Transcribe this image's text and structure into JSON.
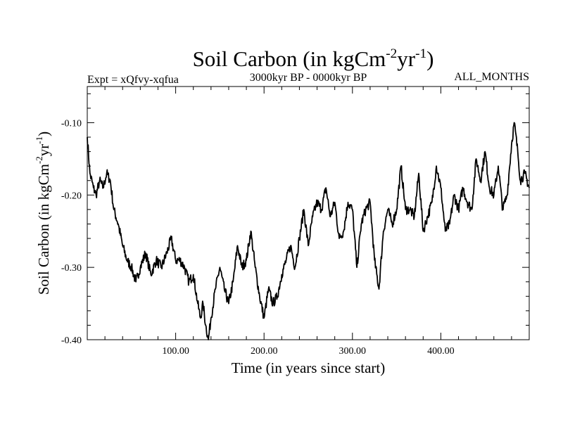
{
  "chart_data": {
    "type": "line",
    "title": {
      "main": "Soil Carbon (in kgCm",
      "exp1": "-2",
      "mid": "yr",
      "exp2": "-1",
      "end": ")"
    },
    "subtitle_left": "Expt = xQfvy-xqfua",
    "subtitle_center": "3000kyr BP - 0000kyr BP",
    "subtitle_right": "ALL_MONTHS",
    "xlabel": "Time (in years since start)",
    "ylabel": {
      "main": "Soil Carbon (in kgCm",
      "exp1": "-2",
      "mid": "yr",
      "exp2": "-1",
      "end": ")"
    },
    "xlim": [
      0,
      500
    ],
    "ylim": [
      -0.4,
      -0.05
    ],
    "x_ticks": [
      100,
      200,
      300,
      400
    ],
    "x_tick_labels": [
      "100.00",
      "200.00",
      "300.00",
      "400.00"
    ],
    "y_ticks": [
      -0.4,
      -0.3,
      -0.2,
      -0.1
    ],
    "y_tick_labels": [
      "-0.40",
      "-0.30",
      "-0.20",
      "-0.10"
    ],
    "grid": false,
    "series": [
      {
        "name": "Soil Carbon",
        "x": [
          0,
          3,
          7,
          10,
          14,
          18,
          22,
          26,
          30,
          35,
          40,
          45,
          50,
          55,
          60,
          66,
          72,
          78,
          84,
          90,
          95,
          100,
          105,
          110,
          115,
          120,
          125,
          128,
          131,
          134,
          137,
          140,
          145,
          150,
          155,
          160,
          165,
          170,
          175,
          180,
          185,
          190,
          195,
          200,
          205,
          210,
          215,
          220,
          225,
          230,
          235,
          240,
          245,
          250,
          255,
          260,
          265,
          270,
          275,
          280,
          285,
          290,
          295,
          300,
          305,
          310,
          315,
          320,
          325,
          330,
          335,
          340,
          345,
          350,
          355,
          360,
          365,
          370,
          375,
          380,
          385,
          390,
          395,
          400,
          405,
          410,
          415,
          420,
          425,
          430,
          435,
          440,
          445,
          450,
          455,
          460,
          465,
          470,
          475,
          480,
          483,
          487,
          490,
          495,
          500
        ],
        "values": [
          -0.12,
          -0.17,
          -0.19,
          -0.2,
          -0.18,
          -0.19,
          -0.17,
          -0.18,
          -0.22,
          -0.24,
          -0.27,
          -0.29,
          -0.3,
          -0.32,
          -0.3,
          -0.28,
          -0.31,
          -0.29,
          -0.3,
          -0.28,
          -0.26,
          -0.29,
          -0.29,
          -0.3,
          -0.32,
          -0.31,
          -0.35,
          -0.37,
          -0.35,
          -0.38,
          -0.4,
          -0.37,
          -0.33,
          -0.3,
          -0.33,
          -0.35,
          -0.32,
          -0.27,
          -0.3,
          -0.29,
          -0.25,
          -0.3,
          -0.34,
          -0.37,
          -0.33,
          -0.35,
          -0.34,
          -0.31,
          -0.29,
          -0.27,
          -0.3,
          -0.26,
          -0.22,
          -0.27,
          -0.23,
          -0.21,
          -0.22,
          -0.19,
          -0.23,
          -0.21,
          -0.26,
          -0.25,
          -0.21,
          -0.22,
          -0.3,
          -0.24,
          -0.22,
          -0.21,
          -0.29,
          -0.33,
          -0.25,
          -0.22,
          -0.24,
          -0.22,
          -0.16,
          -0.22,
          -0.22,
          -0.23,
          -0.17,
          -0.25,
          -0.23,
          -0.21,
          -0.16,
          -0.19,
          -0.25,
          -0.24,
          -0.2,
          -0.22,
          -0.19,
          -0.21,
          -0.22,
          -0.15,
          -0.18,
          -0.14,
          -0.19,
          -0.2,
          -0.16,
          -0.22,
          -0.2,
          -0.13,
          -0.1,
          -0.14,
          -0.18,
          -0.17,
          -0.19
        ]
      }
    ]
  }
}
